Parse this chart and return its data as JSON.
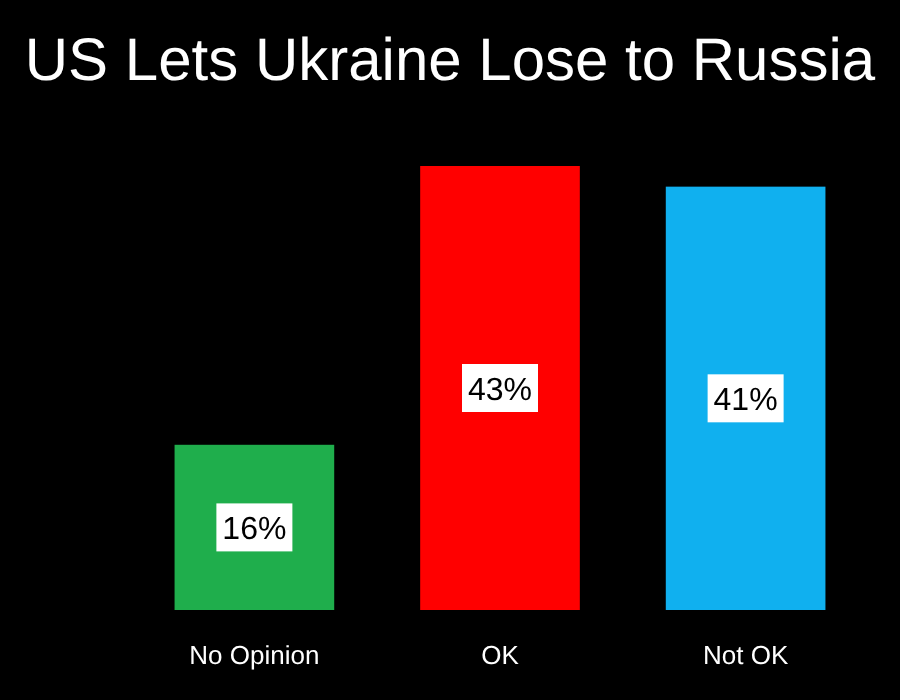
{
  "chart_data": {
    "type": "bar",
    "title": "US Lets Ukraine Lose to Russia",
    "categories": [
      "No Opinion",
      "OK",
      "Not OK"
    ],
    "values": [
      16,
      43,
      41
    ],
    "colors": [
      "#1fae4c",
      "#ff0000",
      "#10b0ef"
    ],
    "value_labels": [
      "16%",
      "43%",
      "41%"
    ]
  }
}
